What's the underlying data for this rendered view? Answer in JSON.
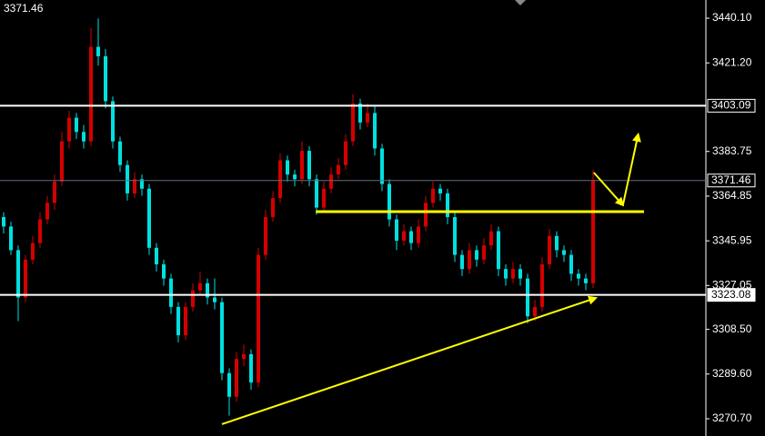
{
  "chart_data": {
    "type": "candlestick",
    "price_label": "3371.46",
    "open": [
      3356,
      3352,
      3342,
      3322,
      3338,
      3345,
      3355,
      3362,
      3371,
      3388,
      3398,
      3392,
      3388,
      3428,
      3424,
      3405,
      3388,
      3378,
      3366,
      3372,
      3368,
      3343,
      3336,
      3330,
      3318,
      3306,
      3318,
      3325,
      3328,
      3322,
      3320,
      3290,
      3280,
      3296,
      3298,
      3286,
      3340,
      3356,
      3364,
      3380,
      3374,
      3372,
      3384,
      3372,
      3360,
      3368,
      3374,
      3378,
      3388,
      3404,
      3396,
      3400,
      3385,
      3370,
      3355,
      3346,
      3350,
      3345,
      3352,
      3362,
      3368,
      3366,
      3356,
      3340,
      3334,
      3342,
      3338,
      3344,
      3350,
      3334,
      3330,
      3334,
      3330,
      3314,
      3318,
      3336,
      3348,
      3342,
      3340,
      3332,
      3330,
      3328
    ],
    "high": [
      3358,
      3354,
      3344,
      3340,
      3348,
      3358,
      3365,
      3374,
      3392,
      3401,
      3400,
      3395,
      3436,
      3440,
      3427,
      3407,
      3390,
      3380,
      3375,
      3374,
      3370,
      3345,
      3338,
      3332,
      3320,
      3320,
      3328,
      3333,
      3330,
      3330,
      3322,
      3292,
      3299,
      3302,
      3300,
      3343,
      3359,
      3367,
      3383,
      3382,
      3376,
      3388,
      3386,
      3374,
      3371,
      3377,
      3381,
      3391,
      3408,
      3406,
      3404,
      3403,
      3387,
      3372,
      3357,
      3353,
      3352,
      3355,
      3365,
      3371,
      3370,
      3368,
      3358,
      3342,
      3345,
      3344,
      3347,
      3353,
      3352,
      3336,
      3337,
      3336,
      3332,
      3321,
      3339,
      3351,
      3350,
      3344,
      3342,
      3334,
      3332,
      3376
    ],
    "low": [
      3349,
      3340,
      3312,
      3320,
      3336,
      3343,
      3353,
      3359,
      3369,
      3385,
      3389,
      3385,
      3386,
      3420,
      3402,
      3385,
      3375,
      3363,
      3364,
      3365,
      3340,
      3333,
      3327,
      3315,
      3303,
      3304,
      3316,
      3323,
      3319,
      3317,
      3287,
      3272,
      3278,
      3293,
      3283,
      3284,
      3338,
      3354,
      3362,
      3371,
      3369,
      3370,
      3369,
      3357,
      3358,
      3366,
      3372,
      3376,
      3386,
      3393,
      3394,
      3382,
      3367,
      3352,
      3342,
      3344,
      3342,
      3343,
      3350,
      3360,
      3363,
      3353,
      3337,
      3331,
      3332,
      3335,
      3336,
      3342,
      3331,
      3327,
      3328,
      3327,
      3311,
      3312,
      3316,
      3334,
      3339,
      3337,
      3329,
      3327,
      3325,
      3326
    ],
    "close": [
      3352,
      3342,
      3322,
      3338,
      3345,
      3355,
      3362,
      3371,
      3388,
      3398,
      3392,
      3388,
      3428,
      3424,
      3405,
      3388,
      3378,
      3366,
      3372,
      3368,
      3343,
      3336,
      3330,
      3318,
      3306,
      3318,
      3325,
      3328,
      3322,
      3320,
      3290,
      3280,
      3296,
      3298,
      3286,
      3340,
      3356,
      3364,
      3380,
      3374,
      3372,
      3384,
      3372,
      3360,
      3368,
      3374,
      3378,
      3388,
      3404,
      3396,
      3400,
      3385,
      3370,
      3355,
      3346,
      3350,
      3345,
      3352,
      3362,
      3368,
      3366,
      3356,
      3340,
      3334,
      3342,
      3338,
      3344,
      3350,
      3334,
      3330,
      3334,
      3330,
      3314,
      3318,
      3336,
      3348,
      3342,
      3340,
      3332,
      3330,
      3328,
      3371.46
    ],
    "up_color": "#d40000",
    "down_color": "#00e0e0",
    "ylim": [
      3263.4,
      3447.8
    ],
    "yticks": [
      {
        "value": 3440.1,
        "label": "3440.10"
      },
      {
        "value": 3421.2,
        "label": "3421.20"
      },
      {
        "value": 3383.75,
        "label": "3383.75"
      },
      {
        "value": 3364.85,
        "label": "3364.85"
      },
      {
        "value": 3345.95,
        "label": "3345.95"
      },
      {
        "value": 3327.05,
        "label": "3327.05"
      },
      {
        "value": 3308.5,
        "label": "3308.50"
      },
      {
        "value": 3289.6,
        "label": "3289.60"
      },
      {
        "value": 3270.7,
        "label": "3270.70"
      }
    ],
    "levels": [
      {
        "value": 3403.09,
        "label": "3403.09",
        "color": "#ffffff"
      },
      {
        "value": 3371.46,
        "label": "3371.46",
        "color": "#5f6f80"
      },
      {
        "value": 3323.08,
        "label": "3323.08",
        "color": "#ffffff"
      }
    ],
    "annotations": [
      {
        "x": [
          42.9,
          88
        ],
        "y": [
          3358.3,
          3358.3
        ],
        "color": "#ffff00",
        "width": 3
      },
      {
        "x": [
          30,
          81.4
        ],
        "y": [
          3268.4,
          3321.8
        ],
        "color": "#ffff00",
        "width": 2,
        "arrow": true
      },
      {
        "x": [
          81.1,
          85.1
        ],
        "y": [
          3374.8,
          3361.0
        ],
        "color": "#ffff00",
        "width": 2,
        "arrow": true
      },
      {
        "x": [
          85.1,
          87.2
        ],
        "y": [
          3361.0,
          3391.0
        ],
        "color": "#ffff00",
        "width": 2,
        "arrow": true
      }
    ]
  }
}
